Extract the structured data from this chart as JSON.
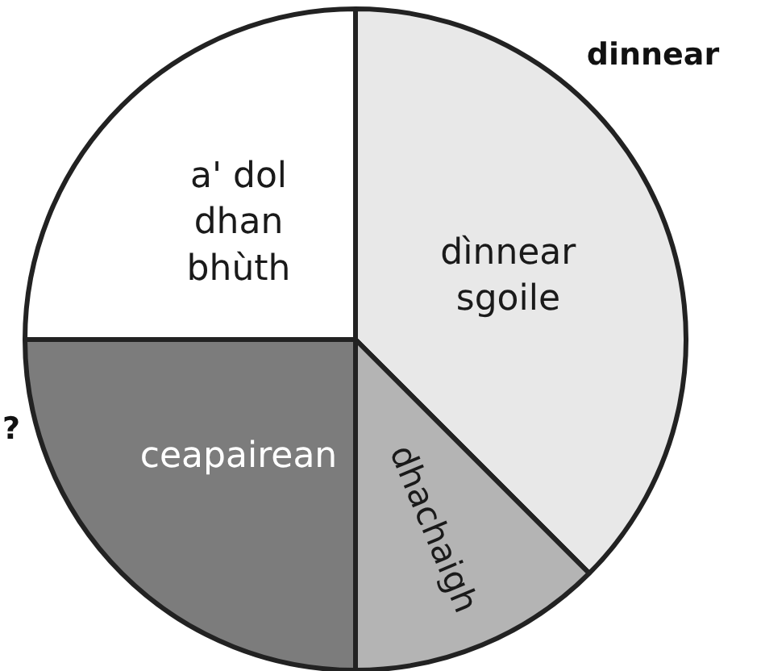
{
  "chart_data": {
    "type": "pie",
    "categories": [
      "dìnnear sgoile",
      "dhachaigh",
      "ceapairean",
      "a' dol dhan bhùth"
    ],
    "values": [
      37.5,
      12.5,
      25,
      25
    ],
    "colors": [
      "#e8e8e8",
      "#b4b4b4",
      "#7c7c7c",
      "#ffffff"
    ],
    "annotations": [
      "dinnear",
      "?"
    ]
  }
}
